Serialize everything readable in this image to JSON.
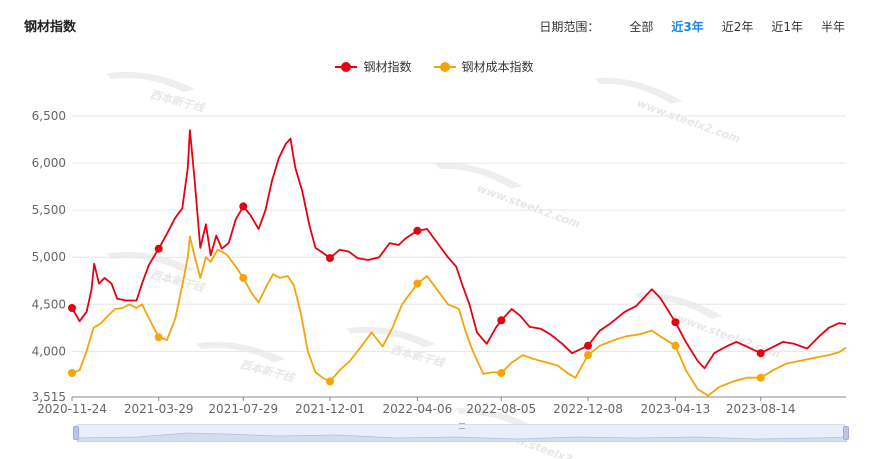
{
  "header": {
    "title": "钢材指数",
    "range_label": "日期范围：",
    "range_options": [
      "全部",
      "近3年",
      "近2年",
      "近1年",
      "半年"
    ],
    "range_active": 1
  },
  "colors": {
    "steel": "#e50012",
    "cost": "#f5a40a",
    "grid": "#e6e6e6",
    "axis": "#999999",
    "active": "#1e88e5"
  },
  "chart_data": {
    "type": "line",
    "ylim": [
      3515,
      6500
    ],
    "y_ticks": [
      "3,515",
      "4,000",
      "4,500",
      "5,000",
      "5,500",
      "6,000",
      "6,500"
    ],
    "x_tick_labels": [
      "2020-11-24",
      "2021-03-29",
      "2021-07-29",
      "2021-12-01",
      "2022-04-06",
      "2022-08-05",
      "2022-12-08",
      "2023-04-13",
      "2023-08-14"
    ],
    "x_range": [
      "2020-11-24",
      "2023-12-15"
    ],
    "series": [
      {
        "name": "钢材指数",
        "color": "#e50012",
        "points": [
          [
            "2020-11-24",
            4460
          ],
          [
            "2020-12-05",
            4320
          ],
          [
            "2020-12-15",
            4420
          ],
          [
            "2020-12-22",
            4650
          ],
          [
            "2020-12-26",
            4930
          ],
          [
            "2021-01-02",
            4720
          ],
          [
            "2021-01-10",
            4780
          ],
          [
            "2021-01-20",
            4720
          ],
          [
            "2021-01-28",
            4560
          ],
          [
            "2021-02-10",
            4540
          ],
          [
            "2021-02-25",
            4540
          ],
          [
            "2021-03-05",
            4720
          ],
          [
            "2021-03-15",
            4920
          ],
          [
            "2021-03-29",
            5090
          ],
          [
            "2021-04-10",
            5250
          ],
          [
            "2021-04-22",
            5420
          ],
          [
            "2021-05-02",
            5520
          ],
          [
            "2021-05-10",
            5950
          ],
          [
            "2021-05-13",
            6350
          ],
          [
            "2021-05-20",
            5800
          ],
          [
            "2021-05-28",
            5100
          ],
          [
            "2021-06-05",
            5350
          ],
          [
            "2021-06-12",
            5020
          ],
          [
            "2021-06-20",
            5230
          ],
          [
            "2021-06-28",
            5090
          ],
          [
            "2021-07-08",
            5150
          ],
          [
            "2021-07-18",
            5400
          ],
          [
            "2021-07-29",
            5540
          ],
          [
            "2021-08-08",
            5450
          ],
          [
            "2021-08-20",
            5300
          ],
          [
            "2021-08-30",
            5500
          ],
          [
            "2021-09-08",
            5800
          ],
          [
            "2021-09-18",
            6050
          ],
          [
            "2021-09-28",
            6200
          ],
          [
            "2021-10-05",
            6260
          ],
          [
            "2021-10-12",
            5950
          ],
          [
            "2021-10-22",
            5700
          ],
          [
            "2021-11-01",
            5350
          ],
          [
            "2021-11-10",
            5100
          ],
          [
            "2021-11-20",
            5050
          ],
          [
            "2021-12-01",
            4990
          ],
          [
            "2021-12-15",
            5080
          ],
          [
            "2021-12-28",
            5060
          ],
          [
            "2022-01-10",
            4990
          ],
          [
            "2022-01-25",
            4970
          ],
          [
            "2022-02-10",
            5000
          ],
          [
            "2022-02-25",
            5150
          ],
          [
            "2022-03-10",
            5130
          ],
          [
            "2022-03-20",
            5200
          ],
          [
            "2022-04-06",
            5280
          ],
          [
            "2022-04-20",
            5300
          ],
          [
            "2022-05-05",
            5150
          ],
          [
            "2022-05-20",
            5000
          ],
          [
            "2022-06-01",
            4900
          ],
          [
            "2022-06-10",
            4700
          ],
          [
            "2022-06-20",
            4500
          ],
          [
            "2022-07-01",
            4200
          ],
          [
            "2022-07-15",
            4080
          ],
          [
            "2022-07-28",
            4250
          ],
          [
            "2022-08-05",
            4330
          ],
          [
            "2022-08-20",
            4450
          ],
          [
            "2022-09-01",
            4380
          ],
          [
            "2022-09-15",
            4260
          ],
          [
            "2022-10-01",
            4240
          ],
          [
            "2022-10-15",
            4180
          ],
          [
            "2022-11-01",
            4080
          ],
          [
            "2022-11-15",
            3980
          ],
          [
            "2022-12-08",
            4060
          ],
          [
            "2022-12-25",
            4220
          ],
          [
            "2023-01-10",
            4300
          ],
          [
            "2023-01-30",
            4420
          ],
          [
            "2023-02-15",
            4480
          ],
          [
            "2023-02-28",
            4580
          ],
          [
            "2023-03-10",
            4660
          ],
          [
            "2023-03-22",
            4570
          ],
          [
            "2023-04-13",
            4310
          ],
          [
            "2023-04-28",
            4100
          ],
          [
            "2023-05-15",
            3900
          ],
          [
            "2023-05-25",
            3820
          ],
          [
            "2023-06-08",
            3980
          ],
          [
            "2023-06-25",
            4050
          ],
          [
            "2023-07-10",
            4100
          ],
          [
            "2023-07-28",
            4040
          ],
          [
            "2023-08-14",
            3980
          ],
          [
            "2023-08-30",
            4040
          ],
          [
            "2023-09-15",
            4100
          ],
          [
            "2023-10-01",
            4080
          ],
          [
            "2023-10-20",
            4030
          ],
          [
            "2023-11-05",
            4150
          ],
          [
            "2023-11-20",
            4250
          ],
          [
            "2023-12-05",
            4300
          ],
          [
            "2023-12-15",
            4290
          ]
        ],
        "markers": [
          [
            "2020-11-24",
            4460
          ],
          [
            "2021-03-29",
            5090
          ],
          [
            "2021-07-29",
            5540
          ],
          [
            "2021-12-01",
            4990
          ],
          [
            "2022-04-06",
            5280
          ],
          [
            "2022-08-05",
            4330
          ],
          [
            "2022-12-08",
            4060
          ],
          [
            "2023-04-13",
            4310
          ],
          [
            "2023-08-14",
            3980
          ]
        ]
      },
      {
        "name": "钢材成本指数",
        "color": "#f5a40a",
        "points": [
          [
            "2020-11-24",
            3770
          ],
          [
            "2020-12-05",
            3800
          ],
          [
            "2020-12-15",
            4000
          ],
          [
            "2020-12-25",
            4250
          ],
          [
            "2021-01-05",
            4300
          ],
          [
            "2021-01-15",
            4380
          ],
          [
            "2021-01-25",
            4450
          ],
          [
            "2021-02-05",
            4460
          ],
          [
            "2021-02-15",
            4500
          ],
          [
            "2021-02-25",
            4460
          ],
          [
            "2021-03-05",
            4500
          ],
          [
            "2021-03-15",
            4350
          ],
          [
            "2021-03-29",
            4150
          ],
          [
            "2021-04-10",
            4120
          ],
          [
            "2021-04-22",
            4350
          ],
          [
            "2021-05-02",
            4700
          ],
          [
            "2021-05-10",
            5000
          ],
          [
            "2021-05-13",
            5220
          ],
          [
            "2021-05-20",
            5000
          ],
          [
            "2021-05-28",
            4780
          ],
          [
            "2021-06-05",
            5000
          ],
          [
            "2021-06-12",
            4950
          ],
          [
            "2021-06-22",
            5080
          ],
          [
            "2021-07-05",
            5030
          ],
          [
            "2021-07-18",
            4900
          ],
          [
            "2021-07-29",
            4780
          ],
          [
            "2021-08-10",
            4620
          ],
          [
            "2021-08-20",
            4520
          ],
          [
            "2021-09-01",
            4700
          ],
          [
            "2021-09-10",
            4820
          ],
          [
            "2021-09-20",
            4780
          ],
          [
            "2021-10-01",
            4800
          ],
          [
            "2021-10-10",
            4700
          ],
          [
            "2021-10-20",
            4400
          ],
          [
            "2021-10-30",
            4000
          ],
          [
            "2021-11-10",
            3780
          ],
          [
            "2021-11-20",
            3720
          ],
          [
            "2021-12-01",
            3680
          ],
          [
            "2021-12-15",
            3800
          ],
          [
            "2021-12-30",
            3900
          ],
          [
            "2022-01-15",
            4050
          ],
          [
            "2022-01-30",
            4200
          ],
          [
            "2022-02-15",
            4050
          ],
          [
            "2022-03-01",
            4250
          ],
          [
            "2022-03-15",
            4500
          ],
          [
            "2022-04-06",
            4720
          ],
          [
            "2022-04-20",
            4800
          ],
          [
            "2022-05-05",
            4650
          ],
          [
            "2022-05-20",
            4500
          ],
          [
            "2022-06-05",
            4450
          ],
          [
            "2022-06-15",
            4200
          ],
          [
            "2022-06-25",
            4000
          ],
          [
            "2022-07-10",
            3760
          ],
          [
            "2022-07-25",
            3780
          ],
          [
            "2022-08-05",
            3770
          ],
          [
            "2022-08-20",
            3880
          ],
          [
            "2022-09-05",
            3960
          ],
          [
            "2022-09-20",
            3920
          ],
          [
            "2022-10-10",
            3880
          ],
          [
            "2022-10-25",
            3850
          ],
          [
            "2022-11-10",
            3760
          ],
          [
            "2022-11-20",
            3720
          ],
          [
            "2022-12-08",
            3960
          ],
          [
            "2022-12-25",
            4060
          ],
          [
            "2023-01-15",
            4120
          ],
          [
            "2023-02-01",
            4160
          ],
          [
            "2023-02-20",
            4180
          ],
          [
            "2023-03-10",
            4220
          ],
          [
            "2023-03-22",
            4160
          ],
          [
            "2023-04-13",
            4060
          ],
          [
            "2023-04-28",
            3800
          ],
          [
            "2023-05-15",
            3600
          ],
          [
            "2023-05-30",
            3530
          ],
          [
            "2023-06-15",
            3620
          ],
          [
            "2023-07-05",
            3680
          ],
          [
            "2023-07-25",
            3720
          ],
          [
            "2023-08-14",
            3720
          ],
          [
            "2023-09-01",
            3800
          ],
          [
            "2023-09-20",
            3870
          ],
          [
            "2023-10-10",
            3900
          ],
          [
            "2023-10-30",
            3930
          ],
          [
            "2023-11-20",
            3960
          ],
          [
            "2023-12-05",
            3990
          ],
          [
            "2023-12-15",
            4040
          ]
        ],
        "markers": [
          [
            "2020-11-24",
            3770
          ],
          [
            "2021-03-29",
            4150
          ],
          [
            "2021-07-29",
            4780
          ],
          [
            "2021-12-01",
            3680
          ],
          [
            "2022-04-06",
            4720
          ],
          [
            "2022-08-05",
            3770
          ],
          [
            "2022-12-08",
            3960
          ],
          [
            "2023-04-13",
            4060
          ],
          [
            "2023-08-14",
            3720
          ]
        ]
      }
    ],
    "legend_position": "top-center",
    "grid": true
  },
  "watermark": {
    "brand": "西本新干线",
    "url": "www.steelx2.com"
  }
}
